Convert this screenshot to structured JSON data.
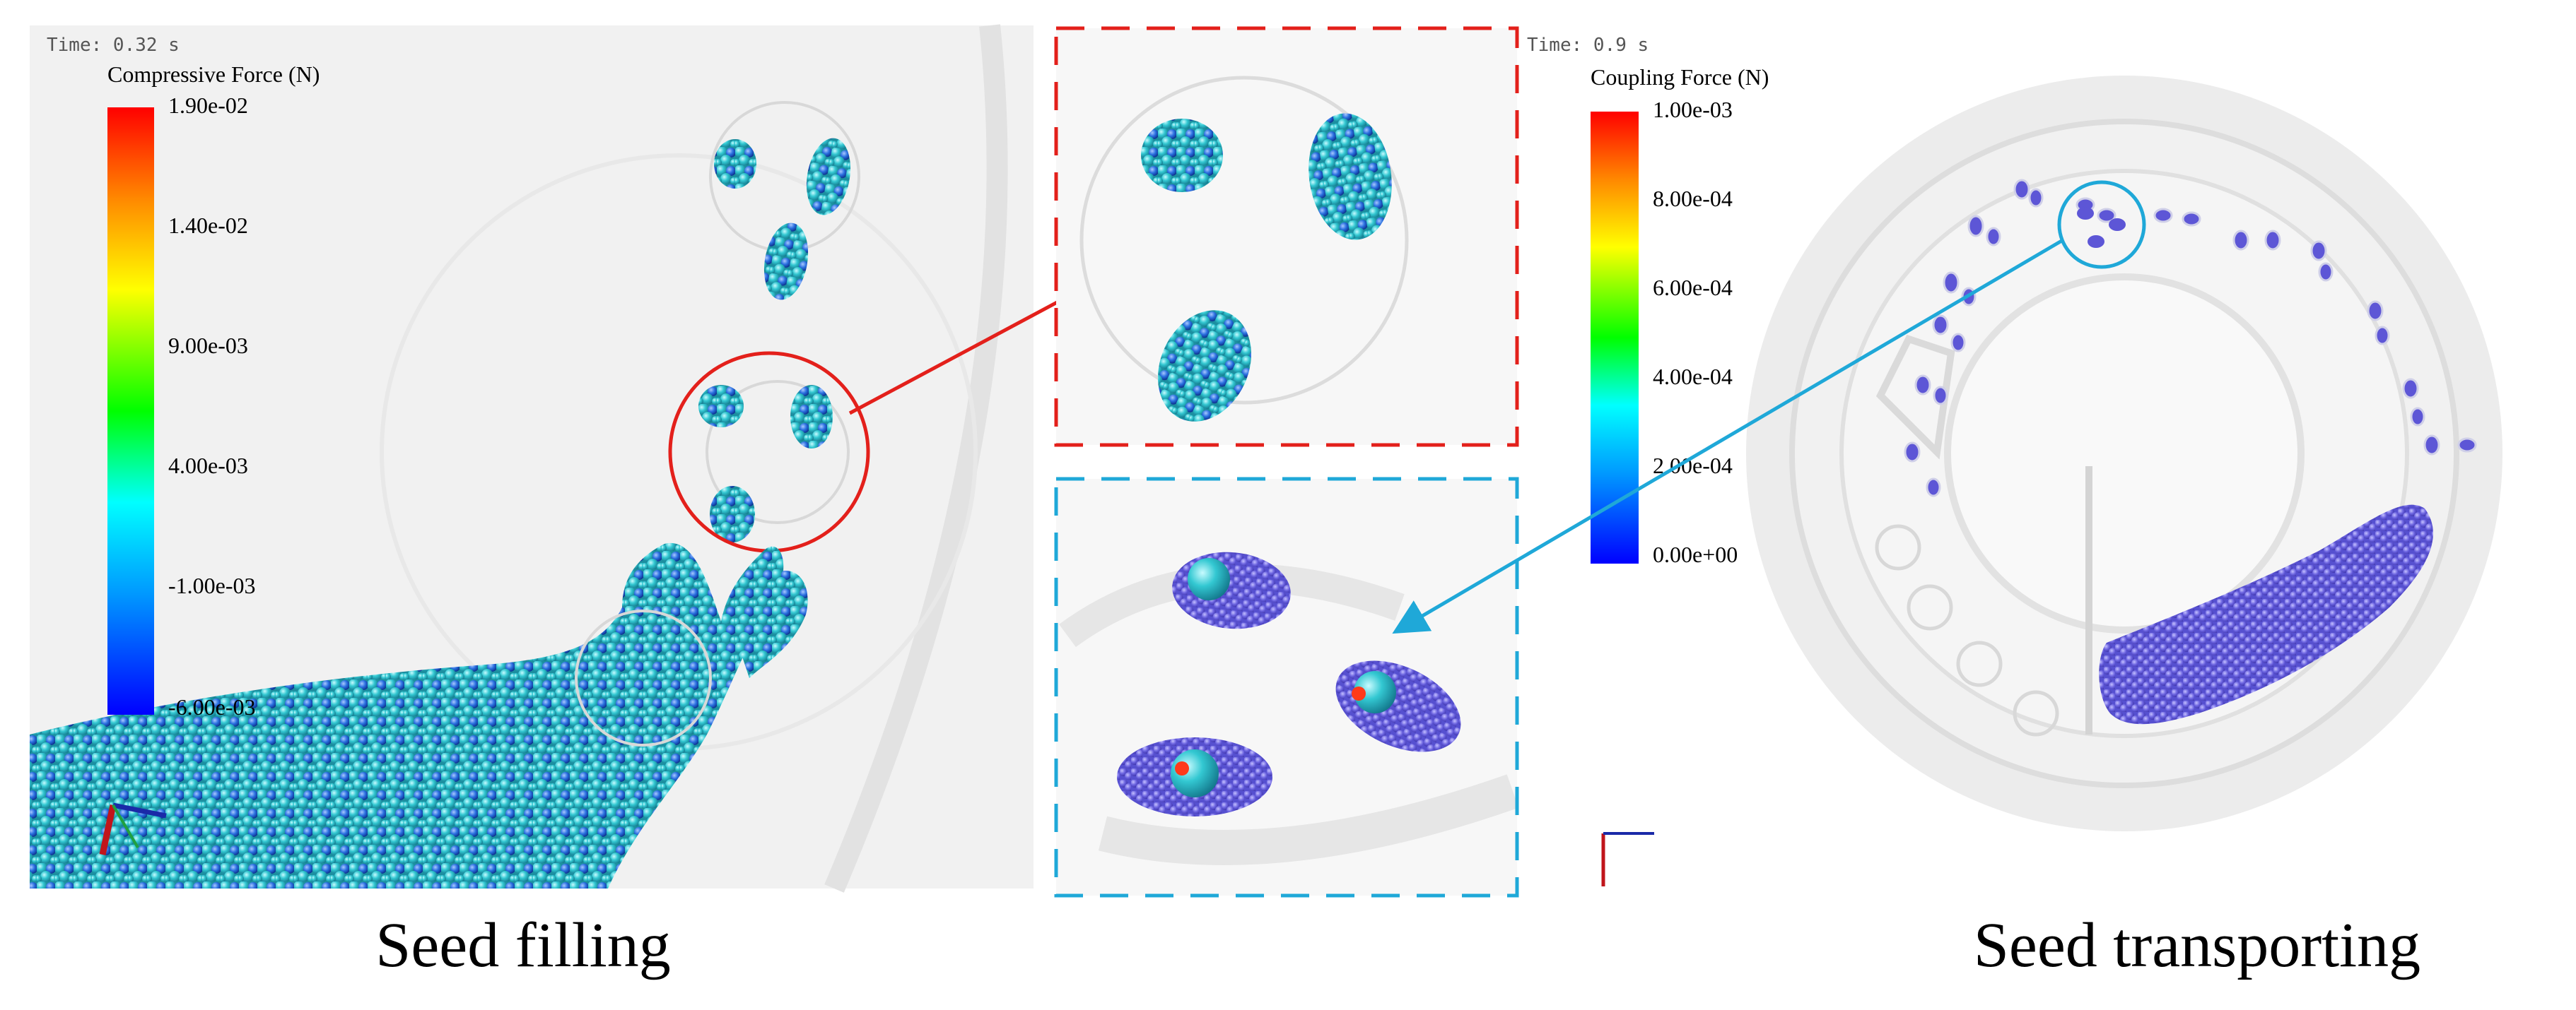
{
  "left_panel": {
    "time_label": "Time: 0.32 s",
    "legend_title": "Compressive Force (N)",
    "legend_ticks": [
      "1.90e-02",
      "1.40e-02",
      "9.00e-03",
      "4.00e-03",
      "-1.00e-03",
      "-6.00e-03"
    ],
    "caption": "Seed filling"
  },
  "right_panel": {
    "time_label": "Time: 0.9 s",
    "legend_title": "Coupling Force (N)",
    "legend_ticks": [
      "1.00e-03",
      "8.00e-04",
      "6.00e-04",
      "4.00e-04",
      "2.00e-04",
      "0.00e+00"
    ],
    "caption": "Seed transporting"
  },
  "colors": {
    "highlight_red": "#e3201b",
    "highlight_blue": "#1fa8d8",
    "particle_teal": "#2fc4c4",
    "particle_purple": "#6b63e0"
  }
}
